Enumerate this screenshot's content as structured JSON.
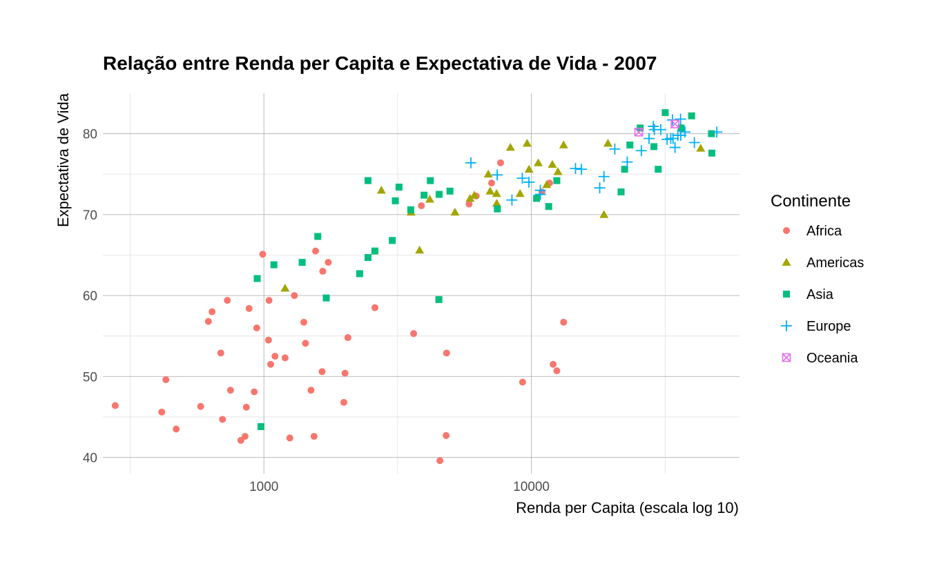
{
  "chart_data": {
    "type": "scatter",
    "title": "Relação entre Renda per Capita e Expectativa de Vida - 2007",
    "xlabel": "Renda per Capita (escala log 10)",
    "ylabel": "Expectativa de Vida",
    "x_scale": "log10",
    "xlim": [
      250,
      60000
    ],
    "ylim": [
      38,
      85
    ],
    "x_ticks": [
      1000,
      10000
    ],
    "x_tick_labels": [
      "1000",
      "10000"
    ],
    "y_ticks": [
      40,
      50,
      60,
      70,
      80
    ],
    "y_tick_labels": [
      "40",
      "50",
      "60",
      "70",
      "80"
    ],
    "grid": true,
    "legend": {
      "title": "Continente",
      "position": "right"
    },
    "series": [
      {
        "name": "Africa",
        "shape": "circle",
        "color": "#F8766D",
        "points": [
          [
            278,
            46.4
          ],
          [
            415,
            45.6
          ],
          [
            430,
            49.6
          ],
          [
            470,
            43.5
          ],
          [
            580,
            46.3
          ],
          [
            620,
            56.8
          ],
          [
            640,
            58.0
          ],
          [
            690,
            52.9
          ],
          [
            700,
            44.7
          ],
          [
            730,
            59.4
          ],
          [
            750,
            48.3
          ],
          [
            820,
            42.1
          ],
          [
            850,
            42.6
          ],
          [
            860,
            46.2
          ],
          [
            880,
            58.4
          ],
          [
            920,
            48.1
          ],
          [
            940,
            56.0
          ],
          [
            990,
            65.1
          ],
          [
            1040,
            54.5
          ],
          [
            1045,
            59.4
          ],
          [
            1060,
            51.5
          ],
          [
            1100,
            52.5
          ],
          [
            1200,
            52.3
          ],
          [
            1250,
            42.4
          ],
          [
            1300,
            60.0
          ],
          [
            1410,
            56.7
          ],
          [
            1430,
            54.1
          ],
          [
            1500,
            48.3
          ],
          [
            1540,
            42.6
          ],
          [
            1560,
            65.5
          ],
          [
            1650,
            50.6
          ],
          [
            1660,
            63.0
          ],
          [
            1740,
            64.1
          ],
          [
            1990,
            46.8
          ],
          [
            2010,
            50.4
          ],
          [
            2060,
            54.8
          ],
          [
            2600,
            58.5
          ],
          [
            3630,
            55.3
          ],
          [
            3880,
            71.1
          ],
          [
            4550,
            39.6
          ],
          [
            4800,
            42.7
          ],
          [
            4820,
            52.9
          ],
          [
            5850,
            71.3
          ],
          [
            6220,
            72.3
          ],
          [
            7100,
            73.9
          ],
          [
            7670,
            76.4
          ],
          [
            9270,
            49.3
          ],
          [
            10950,
            72.8
          ],
          [
            11700,
            73.9
          ],
          [
            12060,
            51.5
          ],
          [
            12450,
            50.7
          ],
          [
            13200,
            56.7
          ]
        ]
      },
      {
        "name": "Americas",
        "shape": "triangle",
        "color": "#A3A500",
        "points": [
          [
            1200,
            60.9
          ],
          [
            2750,
            73.0
          ],
          [
            3550,
            70.3
          ],
          [
            3820,
            65.6
          ],
          [
            4170,
            71.9
          ],
          [
            5180,
            70.3
          ],
          [
            5900,
            72.0
          ],
          [
            6120,
            72.4
          ],
          [
            6900,
            75.0
          ],
          [
            7010,
            72.9
          ],
          [
            7410,
            72.6
          ],
          [
            7420,
            71.4
          ],
          [
            8350,
            78.3
          ],
          [
            9070,
            72.6
          ],
          [
            9640,
            78.8
          ],
          [
            9800,
            75.6
          ],
          [
            10610,
            76.4
          ],
          [
            11410,
            73.7
          ],
          [
            11980,
            76.2
          ],
          [
            12570,
            75.3
          ],
          [
            13200,
            78.6
          ],
          [
            18680,
            70.0
          ],
          [
            19330,
            78.8
          ],
          [
            36320,
            80.7
          ],
          [
            42950,
            78.2
          ]
        ]
      },
      {
        "name": "Asia",
        "shape": "square",
        "color": "#00BF7D",
        "points": [
          [
            975,
            43.8
          ],
          [
            944,
            62.1
          ],
          [
            1090,
            63.8
          ],
          [
            1390,
            64.1
          ],
          [
            1590,
            67.3
          ],
          [
            1710,
            59.7
          ],
          [
            2280,
            62.7
          ],
          [
            2450,
            74.2
          ],
          [
            2450,
            64.7
          ],
          [
            2600,
            65.5
          ],
          [
            3020,
            66.8
          ],
          [
            3100,
            71.7
          ],
          [
            3200,
            73.4
          ],
          [
            3540,
            70.6
          ],
          [
            3970,
            72.4
          ],
          [
            4190,
            74.2
          ],
          [
            4510,
            59.5
          ],
          [
            4520,
            72.5
          ],
          [
            4960,
            72.9
          ],
          [
            7460,
            70.7
          ],
          [
            10460,
            72.0
          ],
          [
            11610,
            71.0
          ],
          [
            12450,
            74.2
          ],
          [
            21650,
            72.8
          ],
          [
            22320,
            75.6
          ],
          [
            23350,
            78.6
          ],
          [
            25520,
            80.7
          ],
          [
            28720,
            78.4
          ],
          [
            29800,
            75.6
          ],
          [
            31650,
            82.6
          ],
          [
            36320,
            80.7
          ],
          [
            39720,
            82.2
          ],
          [
            47140,
            80.0
          ],
          [
            47300,
            77.6
          ]
        ]
      },
      {
        "name": "Europe",
        "shape": "cross",
        "color": "#00B0F6",
        "points": [
          [
            5940,
            76.4
          ],
          [
            7450,
            74.9
          ],
          [
            8460,
            71.8
          ],
          [
            9250,
            74.5
          ],
          [
            9790,
            74.0
          ],
          [
            10800,
            73.0
          ],
          [
            10810,
            72.5
          ],
          [
            14620,
            75.7
          ],
          [
            15390,
            75.6
          ],
          [
            18010,
            73.3
          ],
          [
            18680,
            74.7
          ],
          [
            20510,
            78.1
          ],
          [
            22830,
            76.5
          ],
          [
            25770,
            77.9
          ],
          [
            27540,
            79.4
          ],
          [
            28570,
            80.9
          ],
          [
            28820,
            80.5
          ],
          [
            30470,
            80.5
          ],
          [
            32170,
            79.3
          ],
          [
            33200,
            79.4
          ],
          [
            33690,
            81.7
          ],
          [
            33860,
            79.4
          ],
          [
            34440,
            78.3
          ],
          [
            35280,
            79.8
          ],
          [
            36130,
            81.8
          ],
          [
            36180,
            79.8
          ],
          [
            37510,
            80.2
          ],
          [
            40680,
            78.9
          ],
          [
            49360,
            80.2
          ]
        ]
      },
      {
        "name": "Oceania",
        "shape": "boxx",
        "color": "#E76BF3",
        "points": [
          [
            25190,
            80.2
          ],
          [
            34440,
            81.2
          ]
        ]
      }
    ]
  }
}
